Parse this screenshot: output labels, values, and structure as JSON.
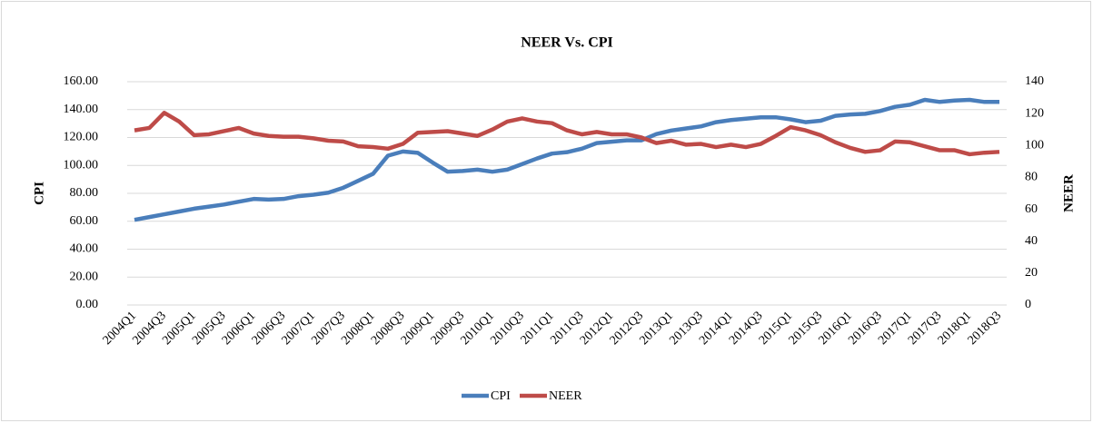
{
  "chart_data": {
    "type": "line",
    "title": "NEER Vs. CPI",
    "y_label": "CPI",
    "y2_label": "NEER",
    "categories": [
      "2004Q1",
      null,
      "2004Q3",
      null,
      "2005Q1",
      null,
      "2005Q3",
      null,
      "2006Q1",
      null,
      "2006Q3",
      null,
      "2007Q1",
      null,
      "2007Q3",
      null,
      "2008Q1",
      null,
      "2008Q3",
      null,
      "2009Q1",
      null,
      "2009Q3",
      null,
      "2010Q1",
      null,
      "2010Q3",
      null,
      "2011Q1",
      null,
      "2011Q3",
      null,
      "2012Q1",
      null,
      "2012Q3",
      null,
      "2013Q1",
      null,
      "2013Q3",
      null,
      "2014Q1",
      null,
      "2014Q3",
      null,
      "2015Q1",
      null,
      "2015Q3",
      null,
      "2016Q1",
      null,
      "2016Q3",
      null,
      "2017Q1",
      null,
      "2017Q3",
      null,
      "2018Q1",
      null,
      "2018Q3"
    ],
    "series": [
      {
        "name": "CPI",
        "color": "#4a7ebb",
        "values": [
          61,
          63,
          65,
          67,
          69,
          70.5,
          72,
          74,
          76,
          75.5,
          76,
          78,
          79,
          80.5,
          84,
          89,
          94,
          107,
          110,
          109,
          102,
          95.5,
          96,
          97,
          95.5,
          97,
          101,
          105,
          108.5,
          109.5,
          112,
          116,
          117,
          118,
          118,
          122.5,
          125,
          126.5,
          128,
          131,
          132.5,
          133.5,
          134.5,
          134.5,
          133,
          131,
          132,
          135.5,
          136.5,
          137,
          139,
          142,
          143.5,
          147,
          145.5,
          146.5,
          147,
          145.5,
          145.5
        ]
      },
      {
        "name": "NEER",
        "color": "#be4b48",
        "axis": "y2",
        "values": [
          109.5,
          111,
          120.5,
          115,
          106.5,
          107,
          109,
          111,
          107.5,
          106,
          105.5,
          105.5,
          104.5,
          103,
          102.5,
          99.5,
          99,
          98,
          101,
          108,
          108.5,
          109,
          107.5,
          106,
          110,
          115,
          117,
          115,
          114,
          109.5,
          107,
          108.5,
          107,
          107,
          105,
          101.5,
          103,
          100.5,
          101,
          99,
          100.5,
          99,
          101,
          106,
          111.5,
          109.5,
          106.5,
          102,
          98.5,
          96,
          97,
          102.5,
          102,
          99.5,
          97,
          97,
          94.5,
          95.5,
          96
        ]
      }
    ],
    "ylim": [
      0,
      160
    ],
    "yticks": [
      {
        "value": 0,
        "label": "0.00"
      },
      {
        "value": 20,
        "label": "20.00"
      },
      {
        "value": 40,
        "label": "40.00"
      },
      {
        "value": 60,
        "label": "60.00"
      },
      {
        "value": 80,
        "label": "80.00"
      },
      {
        "value": 100,
        "label": "100.00"
      },
      {
        "value": 120,
        "label": "120.00"
      },
      {
        "value": 140,
        "label": "140.00"
      },
      {
        "value": 160,
        "label": "160.00"
      }
    ],
    "y2lim": [
      0,
      140
    ],
    "y2ticks": [
      0,
      20,
      40,
      60,
      80,
      100,
      120,
      140
    ],
    "grid": true,
    "legend": "bottom"
  }
}
